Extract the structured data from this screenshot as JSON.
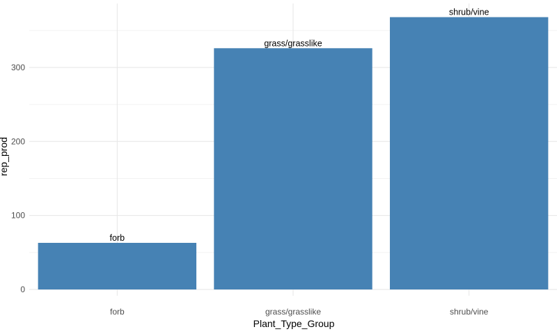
{
  "chart_data": {
    "type": "bar",
    "categories": [
      "forb",
      "grass/grasslike",
      "shrub/vine"
    ],
    "values": [
      63,
      326,
      368
    ],
    "bar_labels": [
      "forb",
      "grass/grasslike",
      "shrub/vine"
    ],
    "xlabel": "Plant_Type_Group",
    "ylabel": "rep_prod",
    "ylim": [
      0,
      386
    ],
    "yticks": [
      0,
      100,
      200,
      300
    ],
    "grid": true,
    "legend": "none",
    "bar_color": "#4682B4"
  }
}
